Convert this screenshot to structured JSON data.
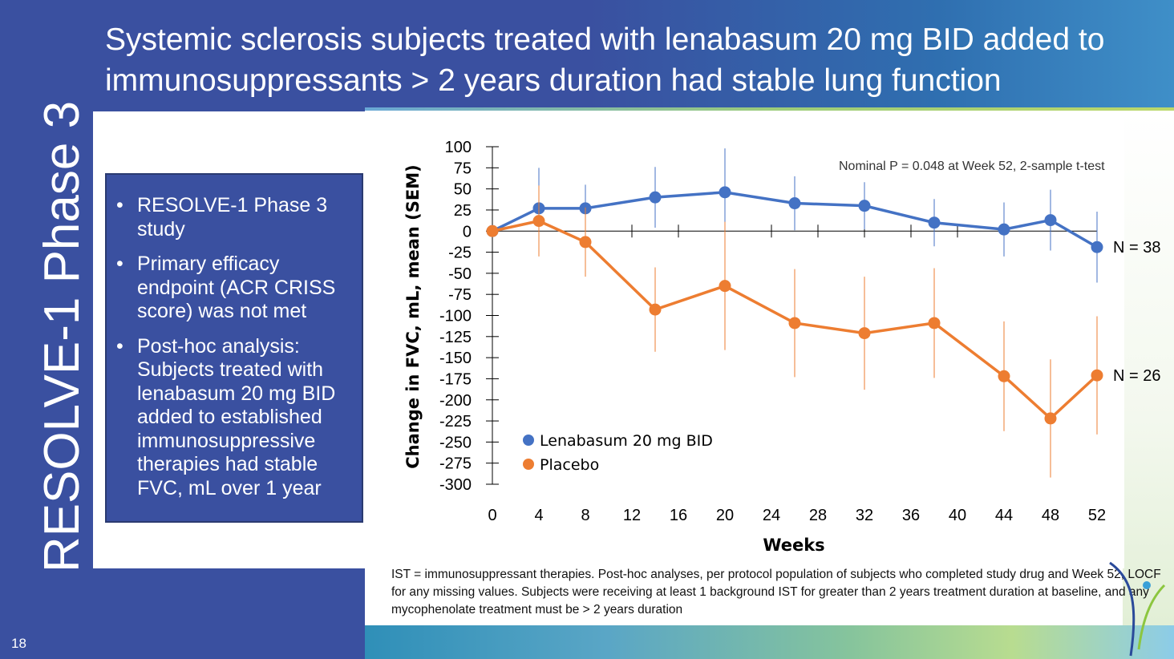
{
  "slide": {
    "title": "Systemic sclerosis subjects treated with lenabasum 20 mg BID added to immunosuppressants > 2 years duration had stable lung function",
    "section_title": "RESOLVE-1 Phase 3",
    "page_number": "18",
    "bullets": [
      "RESOLVE-1 Phase 3 study",
      "Primary efficacy endpoint (ACR CRISS score) was not met",
      "Post-hoc analysis: Subjects treated with lenabasum 20 mg BID added to established immunosuppressive therapies had stable FVC, mL over 1 year"
    ],
    "footnote": "IST = immunosuppressant therapies.  Post-hoc analyses, per protocol population of subjects who completed study drug and Week 52, LOCF for any missing values.  Subjects were receiving at least 1 background IST for greater than 2 years treatment duration at baseline, and any mycophenolate treatment must be > 2 years duration",
    "colors": {
      "slide_blue": "#3a50a0",
      "lenabasum": "#4472c4",
      "placebo": "#ed7d31"
    }
  },
  "chart_data": {
    "type": "line",
    "title": "",
    "xlabel": "Weeks",
    "ylabel": "Change in FVC, mL, mean (SEM)",
    "xlim": [
      0,
      52
    ],
    "ylim": [
      -300,
      100
    ],
    "x_ticks": [
      0,
      4,
      8,
      12,
      16,
      20,
      24,
      28,
      32,
      36,
      40,
      44,
      48,
      52
    ],
    "y_ticks": [
      100,
      75,
      50,
      25,
      0,
      -25,
      -50,
      -75,
      -100,
      -125,
      -150,
      -175,
      -200,
      -225,
      -250,
      -275,
      -300
    ],
    "annotation": "Nominal P = 0.048 at Week 52, 2-sample t-test",
    "legend_position": "bottom-left",
    "series": [
      {
        "name": "Lenabasum 20 mg BID",
        "color": "#4472c4",
        "end_label": "N = 38",
        "x": [
          0,
          4,
          8,
          14,
          20,
          26,
          32,
          38,
          44,
          48,
          52
        ],
        "y": [
          0,
          27,
          27,
          40,
          46,
          33,
          30,
          10,
          2,
          13,
          -19
        ],
        "err": [
          0,
          48,
          28,
          36,
          52,
          32,
          28,
          28,
          32,
          36,
          42
        ]
      },
      {
        "name": "Placebo",
        "color": "#ed7d31",
        "end_label": "N = 26",
        "x": [
          0,
          4,
          8,
          14,
          20,
          26,
          32,
          38,
          44,
          48,
          52
        ],
        "y": [
          0,
          12,
          -13,
          -93,
          -65,
          -109,
          -121,
          -109,
          -172,
          -222,
          -171
        ],
        "err": [
          0,
          42,
          41,
          50,
          76,
          64,
          67,
          65,
          65,
          70,
          70
        ]
      }
    ]
  }
}
